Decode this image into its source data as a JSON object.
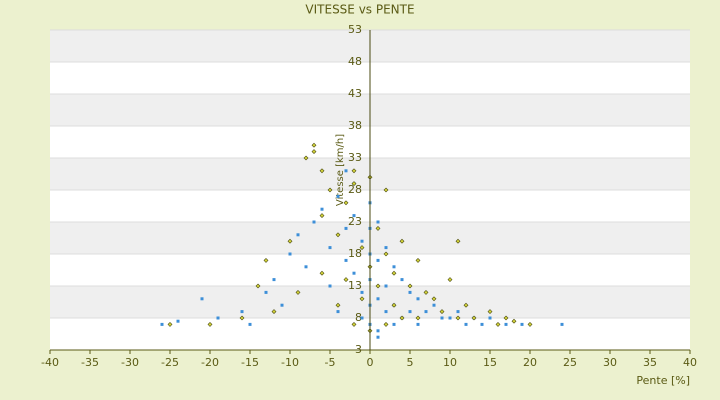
{
  "chart_data": {
    "type": "scatter",
    "title": "VITESSE vs PENTE",
    "x_label": "Pente [%]",
    "y_label": "Vitesse [km/h]",
    "xlim": [
      -40,
      40
    ],
    "xticks": [
      -40,
      -35,
      -30,
      -25,
      -20,
      -15,
      -10,
      -5,
      0,
      5,
      10,
      15,
      20,
      25,
      30,
      35,
      40
    ],
    "ylim": [
      3,
      53
    ],
    "yticks": [
      3,
      8,
      13,
      18,
      23,
      28,
      33,
      38,
      43,
      48,
      53
    ],
    "grid": true,
    "series": [
      {
        "color": "#3d8fd8",
        "x": [
          -26,
          -24,
          -21,
          -19,
          -16,
          -15,
          -13,
          -12,
          -11,
          -10,
          -9,
          -8,
          -7,
          -6,
          -5,
          -5,
          -4,
          -4,
          -3,
          -3,
          -2,
          -2,
          -1,
          -1,
          -1,
          0,
          0,
          0,
          0,
          0,
          1,
          1,
          1,
          1,
          2,
          2,
          2,
          3,
          3,
          3,
          4,
          4,
          5,
          5,
          6,
          6,
          7,
          8,
          9,
          10,
          11,
          12,
          13,
          14,
          15,
          17,
          19,
          24,
          -3,
          -2,
          0,
          1
        ],
        "values": [
          7,
          7.5,
          11,
          8,
          9,
          7,
          12,
          14,
          10,
          18,
          21,
          16,
          23,
          25,
          19,
          13,
          27,
          9,
          22,
          17,
          29,
          24,
          20,
          12,
          8,
          26,
          22,
          18,
          14,
          7,
          23,
          17,
          11,
          6,
          19,
          13,
          9,
          16,
          10,
          7,
          14,
          8,
          12,
          9,
          11,
          7,
          9,
          10,
          8,
          8,
          9,
          7,
          8,
          7,
          8,
          7,
          7,
          7,
          31,
          15,
          10,
          5
        ]
      },
      {
        "color": "#d4d43a",
        "x": [
          -25,
          -20,
          -16,
          -14,
          -13,
          -12,
          -10,
          -9,
          -8,
          -7,
          -6,
          -6,
          -5,
          -4,
          -4,
          -3,
          -3,
          -2,
          -2,
          -1,
          -1,
          0,
          0,
          0,
          1,
          1,
          2,
          2,
          3,
          3,
          4,
          4,
          5,
          6,
          6,
          7,
          8,
          9,
          10,
          11,
          12,
          13,
          15,
          16,
          17,
          18,
          20,
          -7,
          -6,
          -2,
          2,
          11
        ],
        "values": [
          7,
          7,
          8,
          13,
          17,
          9,
          20,
          12,
          33,
          35,
          24,
          15,
          28,
          21,
          10,
          26,
          14,
          31,
          7,
          19,
          11,
          30,
          16,
          6,
          22,
          13,
          18,
          7,
          15,
          10,
          20,
          8,
          13,
          17,
          8,
          12,
          11,
          9,
          14,
          8,
          10,
          8,
          9,
          7,
          8,
          7.5,
          7,
          34,
          31,
          29,
          28,
          20
        ]
      }
    ]
  }
}
